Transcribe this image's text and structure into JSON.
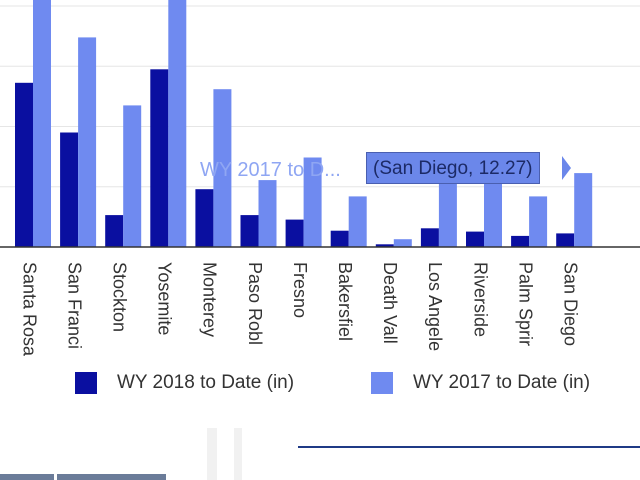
{
  "chart_data": {
    "type": "bar",
    "categories": [
      "Santa Rosa",
      "San Francisco",
      "Stockton",
      "Yosemite",
      "Monterey",
      "Paso Robles",
      "Fresno",
      "Bakersfield",
      "Death Valley",
      "Los Angeles",
      "Riverside",
      "Palm Springs",
      "San Diego"
    ],
    "tick_labels": [
      "Santa Rosa",
      "San Franci",
      "Stockton",
      "Yosemite",
      "Monterey",
      "Paso Robl",
      "Fresno",
      "Bakersfiel",
      "Death Vall",
      "Los Angele",
      "Riverside",
      "Palm Sprir",
      "San Diego"
    ],
    "series": [
      {
        "name": "WY 2018 to Date (in)",
        "color": "#0a0fa0",
        "values": [
          27.25,
          19.0,
          5.3,
          29.5,
          9.6,
          5.3,
          4.55,
          2.7,
          0.45,
          3.1,
          2.55,
          1.85,
          2.25
        ]
      },
      {
        "name": "WY 2017 to Date (in)",
        "color": "#6f8af0",
        "values": [
          42.0,
          34.8,
          23.5,
          42.0,
          26.2,
          11.1,
          14.85,
          8.4,
          1.3,
          15.2,
          11.8,
          8.4,
          12.27
        ]
      }
    ],
    "ylim": [
      0,
      41
    ],
    "grid": true,
    "legend_position": "bottom",
    "tooltip": {
      "series_label": "WY 2017 to D...",
      "text": "(San Diego, 12.27)"
    }
  },
  "legend": {
    "item1": "WY 2018 to Date (in)",
    "item2": "WY 2017 to Date (in)"
  }
}
